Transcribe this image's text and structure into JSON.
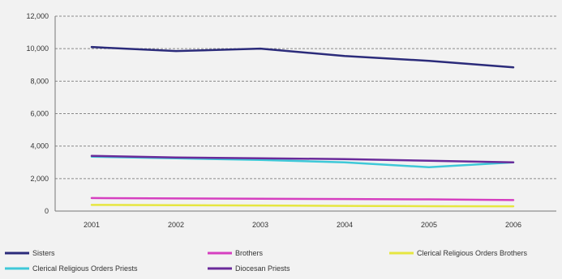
{
  "chart_data": {
    "type": "line",
    "x": [
      "2001",
      "2002",
      "2003",
      "2004",
      "2005",
      "2006"
    ],
    "ylim": [
      0,
      12000
    ],
    "yticks": [
      "0",
      "2,000",
      "4,000",
      "6,000",
      "8,000",
      "10,000",
      "12,000"
    ],
    "grid": "horizontal dashed",
    "legend_position": "bottom",
    "series": [
      {
        "name": "Sisters",
        "color": "#2b2b7a",
        "values": [
          10100,
          9850,
          10000,
          9550,
          9250,
          8850
        ]
      },
      {
        "name": "Brothers",
        "color": "#d63fc0",
        "values": [
          800,
          780,
          760,
          740,
          720,
          680
        ]
      },
      {
        "name": "Clerical Religious Orders Brothers",
        "color": "#e6e640",
        "values": [
          380,
          360,
          340,
          320,
          300,
          290
        ]
      },
      {
        "name": "Clerical Religious Orders Priests",
        "color": "#3ec8d8",
        "values": [
          3350,
          3250,
          3150,
          3000,
          2700,
          3000
        ]
      },
      {
        "name": "Diocesan Priests",
        "color": "#6a2a9a",
        "values": [
          3400,
          3300,
          3250,
          3200,
          3100,
          3000
        ]
      }
    ]
  }
}
